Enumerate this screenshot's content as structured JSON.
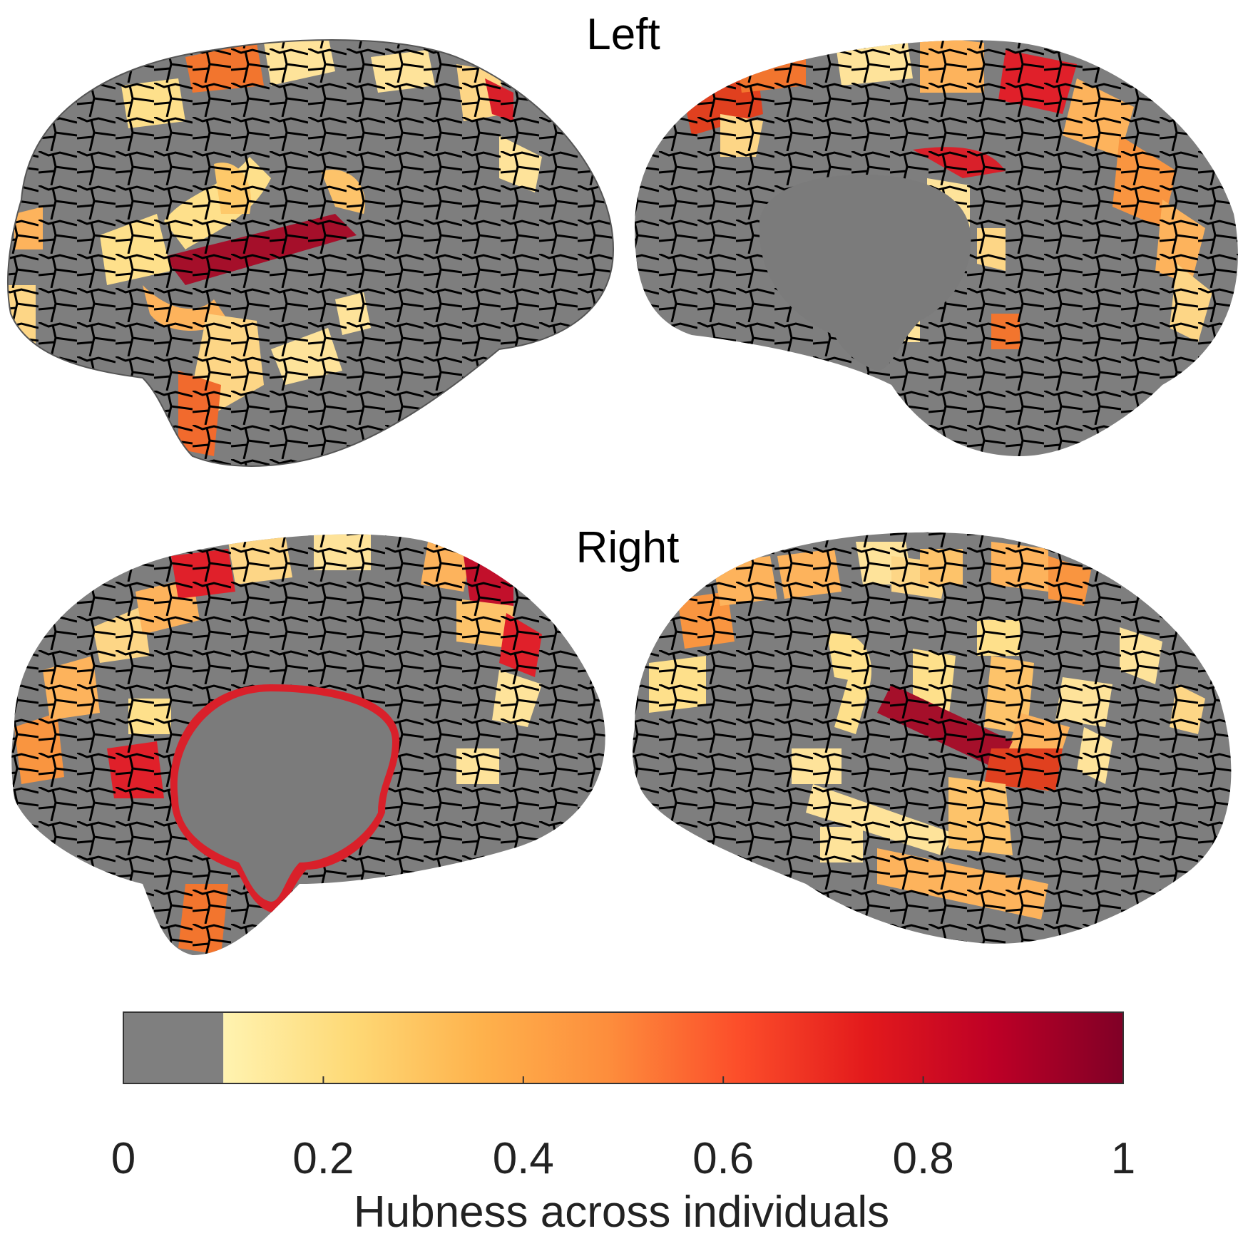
{
  "panels": {
    "top_label": "Left",
    "bottom_label": "Right"
  },
  "colorbar": {
    "title": "Hubness across individuals",
    "ticks": [
      "0",
      "0.2",
      "0.4",
      "0.6",
      "0.8",
      "1"
    ],
    "tick_values": [
      0,
      0.2,
      0.4,
      0.6,
      0.8,
      1
    ],
    "gray_threshold": 0.1,
    "gray_color": "#7f7f7f",
    "gradient_colors": [
      "#fff3b0",
      "#fed976",
      "#feb24c",
      "#fd8d3c",
      "#fc4e2a",
      "#e31a1c",
      "#bd0026",
      "#800026"
    ]
  },
  "views": [
    {
      "hemisphere": "Left",
      "view": "lateral"
    },
    {
      "hemisphere": "Left",
      "view": "medial"
    },
    {
      "hemisphere": "Right",
      "view": "medial"
    },
    {
      "hemisphere": "Right",
      "view": "lateral"
    }
  ]
}
